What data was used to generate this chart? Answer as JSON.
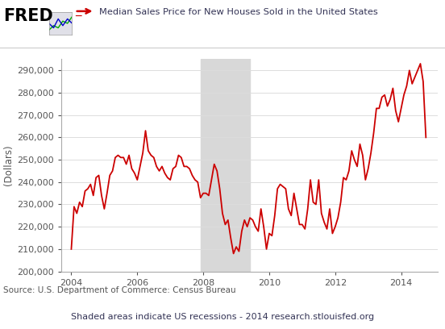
{
  "title": "Median Sales Price for New Houses Sold in the United States",
  "ylabel": "(Dollars)",
  "source_text": "Source: U.S. Department of Commerce: Census Bureau",
  "footer_text": "Shaded areas indicate US recessions - 2014 research.stlouisfed.org",
  "recession_start": 2007.917,
  "recession_end": 2009.417,
  "line_color": "#cc0000",
  "recession_color": "#d8d8d8",
  "bg_color": "#ffffff",
  "tick_color": "#555555",
  "title_color": "#333355",
  "ylim": [
    200000,
    295000
  ],
  "yticks": [
    200000,
    210000,
    220000,
    230000,
    240000,
    250000,
    260000,
    270000,
    280000,
    290000
  ],
  "xticks": [
    2004.0,
    2006.0,
    2008.0,
    2010.0,
    2012.0,
    2014.0
  ],
  "xlabels": [
    "2004",
    "2006",
    "2008",
    "2010",
    "2012",
    "2014"
  ],
  "xlim": [
    2003.7,
    2015.1
  ],
  "data": {
    "dates": [
      2004.0,
      2004.083,
      2004.167,
      2004.25,
      2004.333,
      2004.417,
      2004.5,
      2004.583,
      2004.667,
      2004.75,
      2004.833,
      2004.917,
      2005.0,
      2005.083,
      2005.167,
      2005.25,
      2005.333,
      2005.417,
      2005.5,
      2005.583,
      2005.667,
      2005.75,
      2005.833,
      2005.917,
      2006.0,
      2006.083,
      2006.167,
      2006.25,
      2006.333,
      2006.417,
      2006.5,
      2006.583,
      2006.667,
      2006.75,
      2006.833,
      2006.917,
      2007.0,
      2007.083,
      2007.167,
      2007.25,
      2007.333,
      2007.417,
      2007.5,
      2007.583,
      2007.667,
      2007.75,
      2007.833,
      2007.917,
      2008.0,
      2008.083,
      2008.167,
      2008.25,
      2008.333,
      2008.417,
      2008.5,
      2008.583,
      2008.667,
      2008.75,
      2008.833,
      2008.917,
      2009.0,
      2009.083,
      2009.167,
      2009.25,
      2009.333,
      2009.417,
      2009.5,
      2009.583,
      2009.667,
      2009.75,
      2009.833,
      2009.917,
      2010.0,
      2010.083,
      2010.167,
      2010.25,
      2010.333,
      2010.417,
      2010.5,
      2010.583,
      2010.667,
      2010.75,
      2010.833,
      2010.917,
      2011.0,
      2011.083,
      2011.167,
      2011.25,
      2011.333,
      2011.417,
      2011.5,
      2011.583,
      2011.667,
      2011.75,
      2011.833,
      2011.917,
      2012.0,
      2012.083,
      2012.167,
      2012.25,
      2012.333,
      2012.417,
      2012.5,
      2012.583,
      2012.667,
      2012.75,
      2012.833,
      2012.917,
      2013.0,
      2013.083,
      2013.167,
      2013.25,
      2013.333,
      2013.417,
      2013.5,
      2013.583,
      2013.667,
      2013.75,
      2013.833,
      2013.917,
      2014.0,
      2014.083,
      2014.167,
      2014.25,
      2014.333,
      2014.417,
      2014.5,
      2014.583,
      2014.667,
      2014.75
    ],
    "values": [
      210000,
      229000,
      226000,
      231000,
      229000,
      236000,
      237000,
      239000,
      234000,
      242000,
      243000,
      234000,
      228000,
      235000,
      243000,
      245000,
      251000,
      252000,
      251000,
      251000,
      248000,
      252000,
      246000,
      244000,
      241000,
      247000,
      253000,
      263000,
      254000,
      252000,
      251000,
      247000,
      245000,
      247000,
      244000,
      242000,
      241000,
      246000,
      247000,
      252000,
      251000,
      247000,
      247000,
      246000,
      243000,
      241000,
      240000,
      233000,
      235000,
      235000,
      234000,
      241000,
      248000,
      245000,
      237000,
      226000,
      221000,
      223000,
      215000,
      208000,
      211000,
      209000,
      218000,
      223000,
      220000,
      224000,
      223000,
      220000,
      218000,
      228000,
      220000,
      210000,
      217000,
      216000,
      225000,
      237000,
      239000,
      238000,
      237000,
      228000,
      225000,
      235000,
      228000,
      221000,
      221000,
      219000,
      228000,
      241000,
      231000,
      230000,
      241000,
      226000,
      222000,
      219000,
      228000,
      217000,
      220000,
      224000,
      231000,
      242000,
      241000,
      245000,
      254000,
      250000,
      247000,
      257000,
      252000,
      241000,
      246000,
      253000,
      262000,
      273000,
      273000,
      278000,
      279000,
      274000,
      277000,
      282000,
      272000,
      267000,
      273000,
      279000,
      283000,
      290000,
      284000,
      287000,
      290000,
      293000,
      285000,
      260000
    ]
  }
}
